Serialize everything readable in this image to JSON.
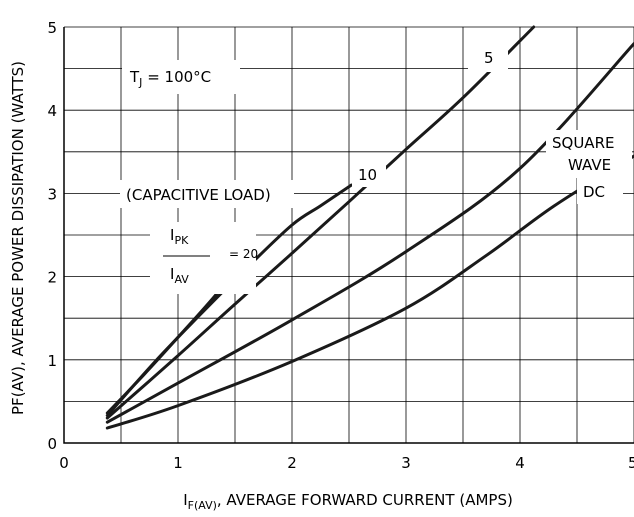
{
  "chart_data": {
    "type": "line",
    "xlabel_main": "I",
    "xlabel_sub": "F(AV)",
    "xlabel_rest": ", AVERAGE FORWARD CURRENT (AMPS)",
    "ylabel_main": "P",
    "ylabel_sub": "F(AV)",
    "ylabel_rest": ", AVERAGE POWER DISSIPATION (WATTS)",
    "xlim": [
      0,
      5
    ],
    "ylim": [
      0,
      5
    ],
    "x_ticks": [
      "0",
      "1",
      "2",
      "3",
      "4",
      "5"
    ],
    "y_ticks": [
      "0",
      "1",
      "2",
      "3",
      "4",
      "5"
    ],
    "grid": true,
    "series": [
      {
        "name": "20",
        "x": [
          0.38,
          0.7,
          1.0,
          1.3,
          1.52
        ],
        "y": [
          0.36,
          0.82,
          1.27,
          1.73,
          2.1
        ]
      },
      {
        "name": "10",
        "x": [
          0.38,
          0.8,
          1.2,
          1.6,
          2.0,
          2.25,
          2.52
        ],
        "y": [
          0.33,
          0.98,
          1.55,
          2.1,
          2.62,
          2.85,
          3.1
        ]
      },
      {
        "name": "5",
        "x": [
          0.38,
          1.0,
          1.5,
          2.0,
          2.5,
          3.0,
          3.5,
          4.12
        ],
        "y": [
          0.3,
          1.05,
          1.67,
          2.28,
          2.9,
          3.53,
          4.15,
          5.0
        ]
      },
      {
        "name": "SQUARE WAVE",
        "x": [
          0.38,
          1.0,
          2.0,
          3.0,
          4.0,
          5.0
        ],
        "y": [
          0.25,
          0.72,
          1.48,
          2.3,
          3.3,
          4.8
        ]
      },
      {
        "name": "DC",
        "x": [
          0.38,
          1.0,
          2.0,
          3.0,
          3.7,
          4.3,
          5.0
        ],
        "y": [
          0.18,
          0.45,
          0.98,
          1.62,
          2.25,
          2.85,
          3.45
        ]
      }
    ],
    "annotations": {
      "tj_main": "T",
      "tj_sub": "J",
      "tj_rest": " = 100°C",
      "label_5": "5",
      "label_10": "10",
      "square": "SQUARE",
      "wave": "WAVE",
      "dc": "DC",
      "capacitive": "(CAPACITIVE LOAD)",
      "ipk_main": "I",
      "ipk_sub": "PK",
      "iav_main": "I",
      "iav_sub": "AV",
      "ratio": "= 20"
    }
  }
}
